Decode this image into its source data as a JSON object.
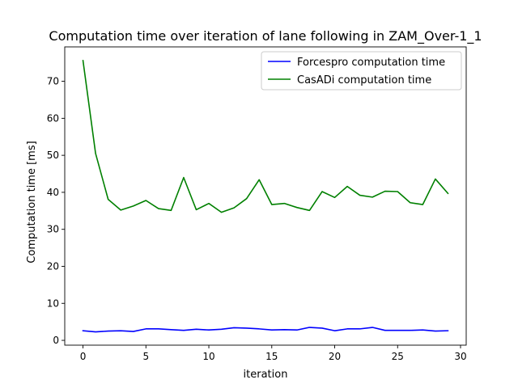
{
  "chart_data": {
    "type": "line",
    "title": "Computation time over iteration of lane following in ZAM_Over-1_1",
    "xlabel": "iteration",
    "ylabel": "Computation time [ms]",
    "xlim": [
      -1.45,
      30.45
    ],
    "ylim": [
      -1.3,
      79.3
    ],
    "xticks": [
      0,
      5,
      10,
      15,
      20,
      25,
      30
    ],
    "yticks": [
      0,
      10,
      20,
      30,
      40,
      50,
      60,
      70
    ],
    "grid": false,
    "legend_position": "top-right",
    "x": [
      0,
      1,
      2,
      3,
      4,
      5,
      6,
      7,
      8,
      9,
      10,
      11,
      12,
      13,
      14,
      15,
      16,
      17,
      18,
      19,
      20,
      21,
      22,
      23,
      24,
      25,
      26,
      27,
      28,
      29
    ],
    "series": [
      {
        "name": "Forcespro computation time",
        "color": "#0000ff",
        "values": [
          2.6,
          2.3,
          2.5,
          2.6,
          2.4,
          3.1,
          3.1,
          2.9,
          2.7,
          3.0,
          2.8,
          3.0,
          3.4,
          3.3,
          3.1,
          2.8,
          2.9,
          2.8,
          3.5,
          3.3,
          2.6,
          3.1,
          3.1,
          3.5,
          2.7,
          2.7,
          2.7,
          2.8,
          2.5,
          2.6
        ]
      },
      {
        "name": "CasADi computation time",
        "color": "#008000",
        "values": [
          75.6,
          50.5,
          38.1,
          35.2,
          36.3,
          37.8,
          35.6,
          35.1,
          44.0,
          35.3,
          37.0,
          34.6,
          35.8,
          38.3,
          43.4,
          36.7,
          37.0,
          35.9,
          35.1,
          40.2,
          38.6,
          41.6,
          39.2,
          38.7,
          40.3,
          40.2,
          37.2,
          36.7,
          43.6,
          39.7
        ]
      }
    ]
  }
}
